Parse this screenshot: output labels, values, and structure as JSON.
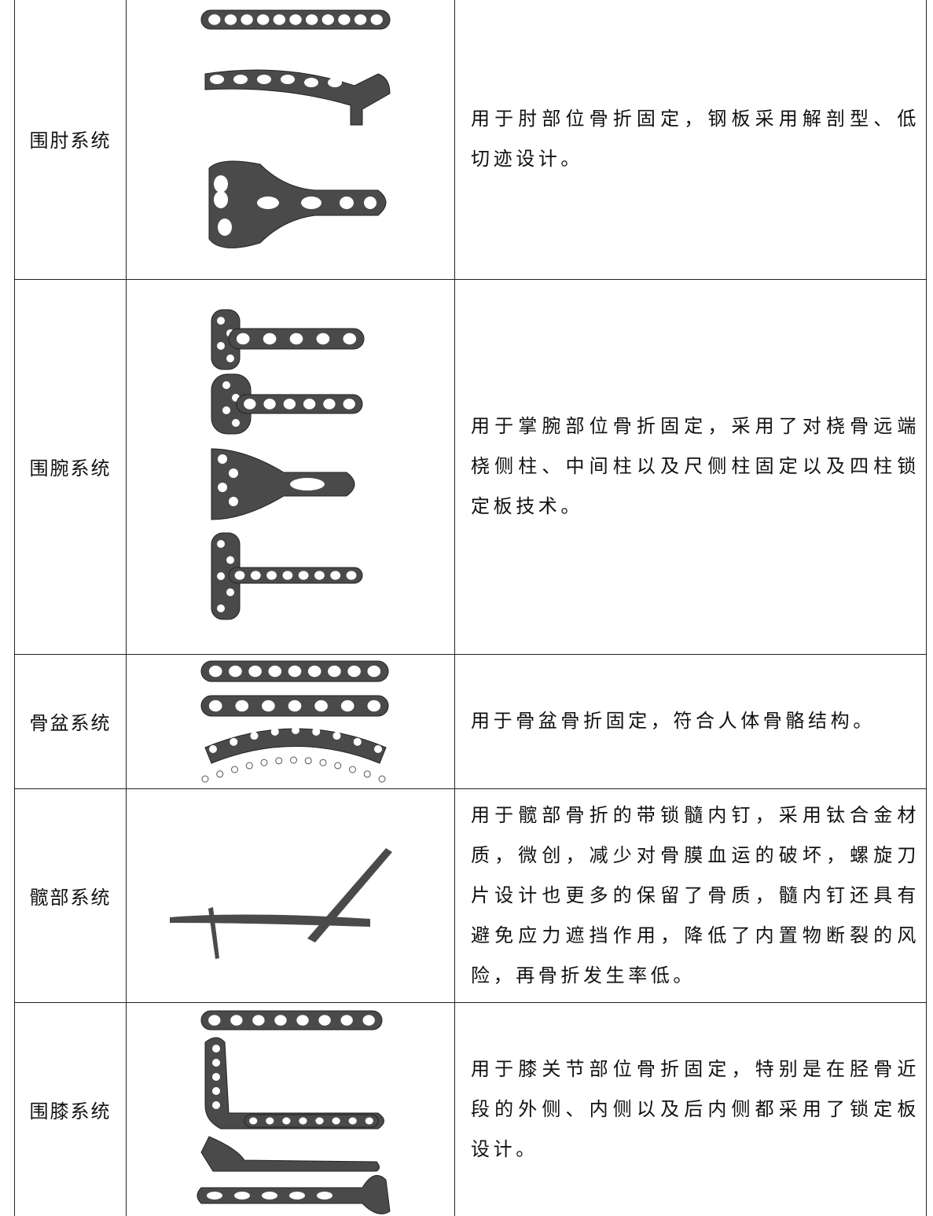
{
  "table": {
    "rows": [
      [
        "围肘系统",
        "用于肘部位骨折固定，钢板采用解剖型、低切迹设计。"
      ],
      [
        "围腕系统",
        "用于掌腕部位骨折固定，采用了对桡骨远端桡侧柱、中间柱以及尺侧柱固定以及四柱锁定板技术。"
      ],
      [
        "骨盆系统",
        "用于骨盆骨折固定，符合人体骨骼结构。"
      ],
      [
        "髋部系统",
        "用于髋部骨折的带锁髓内钉，采用钛合金材质，微创，减少对骨膜血运的破坏，螺旋刀片设计也更多的保留了骨质，髓内钉还具有避免应力遮挡作用，降低了内置物断裂的风险，再骨折发生率低。"
      ],
      [
        "围膝系统",
        "用于膝关节部位骨折固定，特别是在胫骨近段的外侧、内侧以及后内侧都采用了锁定板设计。"
      ]
    ]
  }
}
